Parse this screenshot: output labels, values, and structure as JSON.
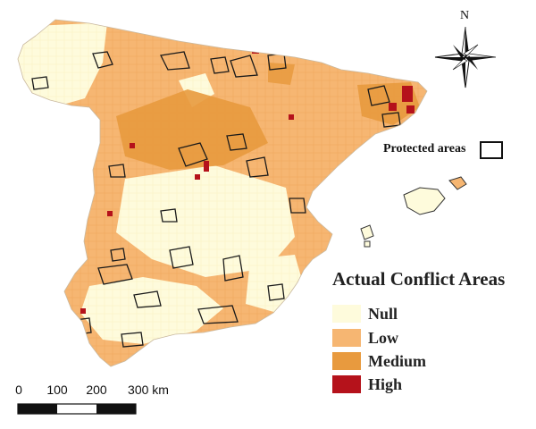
{
  "legend": {
    "title": "Actual Conflict Areas",
    "items": [
      {
        "label": "Null",
        "color": "#fefbdc"
      },
      {
        "label": "Low",
        "color": "#f6b672"
      },
      {
        "label": "Medium",
        "color": "#e89a3e"
      },
      {
        "label": "High",
        "color": "#b5121b"
      }
    ]
  },
  "protected_areas": {
    "label": "Protected areas"
  },
  "north_arrow": {
    "label": "N"
  },
  "scale_bar": {
    "ticks": [
      "0",
      "100",
      "200",
      "300 km"
    ]
  }
}
